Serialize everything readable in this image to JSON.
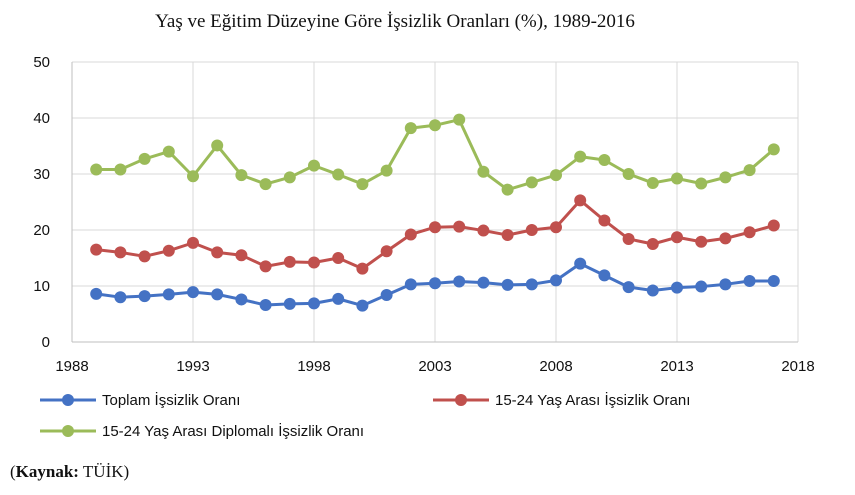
{
  "chart_data": {
    "type": "line",
    "title": "Yaş ve Eğitim Düzeyine Göre İşsizlik Oranları (%), 1989-2016",
    "xlim": [
      1988,
      2018
    ],
    "ylim": [
      0,
      50
    ],
    "x_ticks": [
      1988,
      1993,
      1998,
      2003,
      2008,
      2013,
      2018
    ],
    "y_ticks": [
      0,
      10,
      20,
      30,
      40,
      50
    ],
    "grid": true,
    "legend_position": "bottom",
    "x": [
      1989,
      1990,
      1991,
      1992,
      1993,
      1994,
      1995,
      1996,
      1997,
      1998,
      1999,
      2000,
      2001,
      2002,
      2003,
      2004,
      2005,
      2006,
      2007,
      2008,
      2009,
      2010,
      2011,
      2012,
      2013,
      2014,
      2015,
      2016,
      2017
    ],
    "series": [
      {
        "name": "Toplam İşsizlik Oranı",
        "color": "#4472C4",
        "values": [
          8.6,
          8.0,
          8.2,
          8.5,
          8.9,
          8.5,
          7.6,
          6.6,
          6.8,
          6.9,
          7.7,
          6.5,
          8.4,
          10.3,
          10.5,
          10.8,
          10.6,
          10.2,
          10.3,
          11.0,
          14.0,
          11.9,
          9.8,
          9.2,
          9.7,
          9.9,
          10.3,
          10.9,
          10.9
        ]
      },
      {
        "name": "15-24 Yaş Arası İşsizlik Oranı",
        "color": "#C0504D",
        "values": [
          16.5,
          16.0,
          15.3,
          16.3,
          17.7,
          16.0,
          15.5,
          13.5,
          14.3,
          14.2,
          15.0,
          13.1,
          16.2,
          19.2,
          20.5,
          20.6,
          19.9,
          19.1,
          20.0,
          20.5,
          25.3,
          21.7,
          18.4,
          17.5,
          18.7,
          17.9,
          18.5,
          19.6,
          20.8
        ]
      },
      {
        "name": "15-24 Yaş Arası Diplomalı İşsizlik Oranı",
        "color": "#9BBB59",
        "values": [
          30.8,
          30.8,
          32.7,
          34.0,
          29.6,
          35.1,
          29.8,
          28.2,
          29.4,
          31.5,
          29.9,
          28.2,
          30.6,
          38.2,
          38.7,
          39.7,
          30.4,
          27.2,
          28.5,
          29.8,
          33.1,
          32.5,
          30.0,
          28.4,
          29.2,
          28.3,
          29.4,
          30.7,
          34.4
        ]
      }
    ]
  },
  "source": {
    "label": "Kaynak:",
    "value": "TÜİK"
  }
}
